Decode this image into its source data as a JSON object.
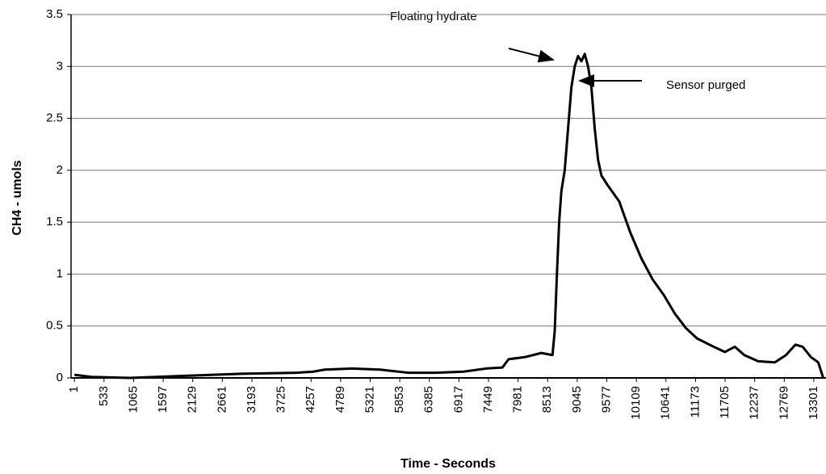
{
  "chart_data": {
    "type": "line",
    "xlabel": "Time - Seconds",
    "ylabel": "CH4 - umols",
    "annotations": [
      {
        "text": "Floating hydrate"
      },
      {
        "text": "Sensor purged"
      }
    ],
    "x": [
      1,
      300,
      1000,
      2000,
      3000,
      4000,
      4300,
      4500,
      5000,
      5500,
      6000,
      6500,
      7000,
      7400,
      7700,
      7810,
      8100,
      8400,
      8600,
      8640,
      8680,
      8720,
      8760,
      8820,
      8880,
      8940,
      9000,
      9060,
      9120,
      9180,
      9240,
      9300,
      9360,
      9420,
      9480,
      9600,
      9800,
      10000,
      10200,
      10400,
      10600,
      10800,
      11000,
      11200,
      11500,
      11700,
      11880,
      12050,
      12300,
      12600,
      12800,
      12970,
      13100,
      13250,
      13380,
      13470
    ],
    "series": [
      {
        "name": "CH4",
        "color": "#000000",
        "values": [
          0.03,
          0.01,
          0.0,
          0.02,
          0.04,
          0.05,
          0.06,
          0.08,
          0.09,
          0.08,
          0.05,
          0.05,
          0.06,
          0.09,
          0.1,
          0.18,
          0.2,
          0.24,
          0.22,
          0.45,
          1.0,
          1.5,
          1.8,
          2.0,
          2.4,
          2.8,
          3.0,
          3.1,
          3.05,
          3.12,
          3.0,
          2.8,
          2.4,
          2.1,
          1.95,
          1.85,
          1.7,
          1.4,
          1.15,
          0.95,
          0.8,
          0.62,
          0.48,
          0.38,
          0.3,
          0.25,
          0.3,
          0.22,
          0.16,
          0.15,
          0.22,
          0.32,
          0.3,
          0.2,
          0.15,
          0.0
        ]
      }
    ],
    "xlim": [
      -60,
      13520
    ],
    "ylim": [
      0,
      3.5
    ],
    "xticks": [
      1,
      533,
      1065,
      1597,
      2129,
      2661,
      3193,
      3725,
      4257,
      4789,
      5321,
      5853,
      6385,
      6917,
      7449,
      7981,
      8513,
      9045,
      9577,
      10109,
      10641,
      11173,
      11705,
      12237,
      12769,
      13301
    ],
    "yticks": [
      0,
      0.5,
      1,
      1.5,
      2,
      2.5,
      3,
      3.5
    ],
    "grid": true
  }
}
